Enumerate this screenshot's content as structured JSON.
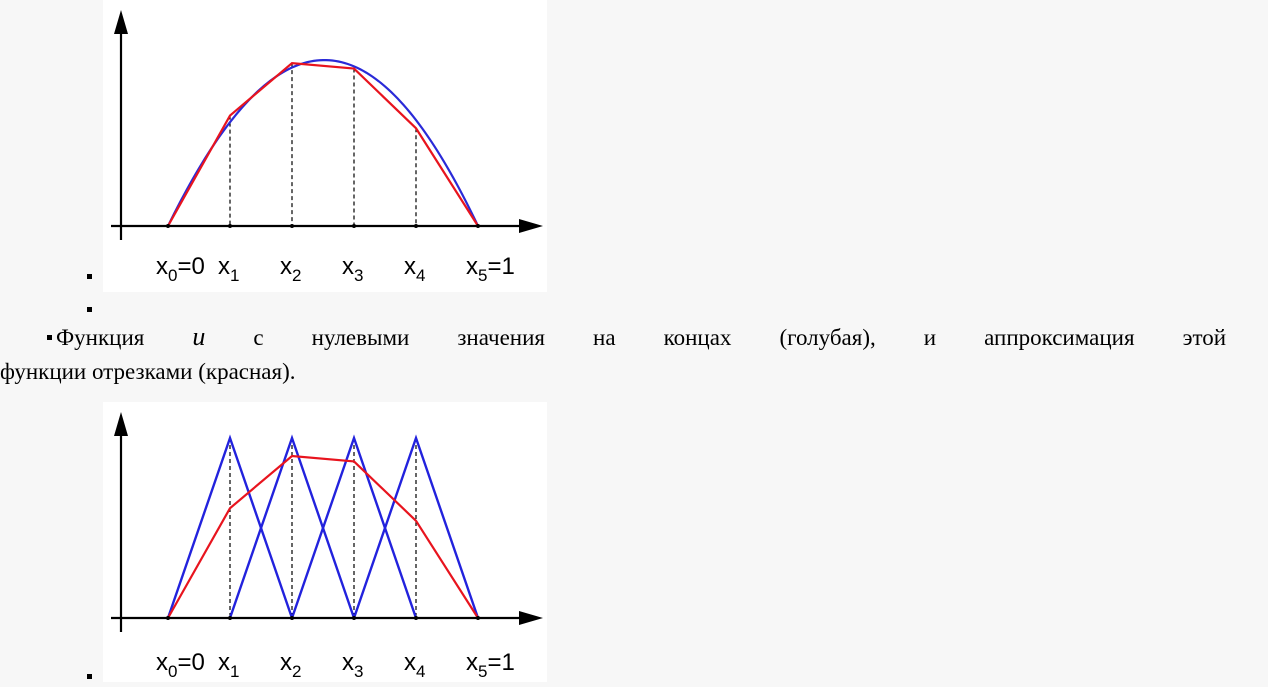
{
  "figure1": {
    "tick_labels": [
      {
        "base": "x",
        "sub": "0",
        "suffix": "=0"
      },
      {
        "base": "x",
        "sub": "1",
        "suffix": ""
      },
      {
        "base": "x",
        "sub": "2",
        "suffix": ""
      },
      {
        "base": "x",
        "sub": "3",
        "suffix": ""
      },
      {
        "base": "x",
        "sub": "4",
        "suffix": ""
      },
      {
        "base": "x",
        "sub": "5",
        "suffix": "=1"
      }
    ],
    "colors": {
      "curve": "#2a2ad8",
      "approx": "#e8141e",
      "axis": "#000000"
    }
  },
  "caption": {
    "line1_before": "Функция",
    "symbol": "u",
    "line1_after": "с нулевыми значения на концах (голубая), и аппроксимация этой",
    "line2": "функции отрезками (красная)."
  },
  "figure2": {
    "tick_labels": [
      {
        "base": "x",
        "sub": "0",
        "suffix": "=0"
      },
      {
        "base": "x",
        "sub": "1",
        "suffix": ""
      },
      {
        "base": "x",
        "sub": "2",
        "suffix": ""
      },
      {
        "base": "x",
        "sub": "3",
        "suffix": ""
      },
      {
        "base": "x",
        "sub": "4",
        "suffix": ""
      },
      {
        "base": "x",
        "sub": "5",
        "suffix": "=1"
      }
    ],
    "colors": {
      "hats": "#2222dd",
      "approx": "#e8141e",
      "axis": "#000000"
    }
  },
  "chart_data": [
    {
      "type": "line",
      "x": [
        0,
        0.2,
        0.4,
        0.6,
        0.8,
        1
      ],
      "series": [
        {
          "values": [
            0,
            0.61,
            0.9,
            0.87,
            0.54,
            0
          ]
        }
      ]
    },
    {
      "type": "line",
      "x": [
        0,
        0.2,
        0.4,
        0.6,
        0.8,
        1
      ],
      "series": [
        {
          "values": [
            0,
            0.61,
            0.9,
            0.87,
            0.54,
            0
          ]
        },
        {
          "values": [
            0,
            1,
            0,
            0,
            0,
            0
          ]
        },
        {
          "values": [
            0,
            0,
            1,
            0,
            0,
            0
          ]
        },
        {
          "values": [
            0,
            0,
            0,
            1,
            0,
            0
          ]
        },
        {
          "values": [
            0,
            0,
            0,
            0,
            1,
            0
          ]
        }
      ]
    }
  ]
}
